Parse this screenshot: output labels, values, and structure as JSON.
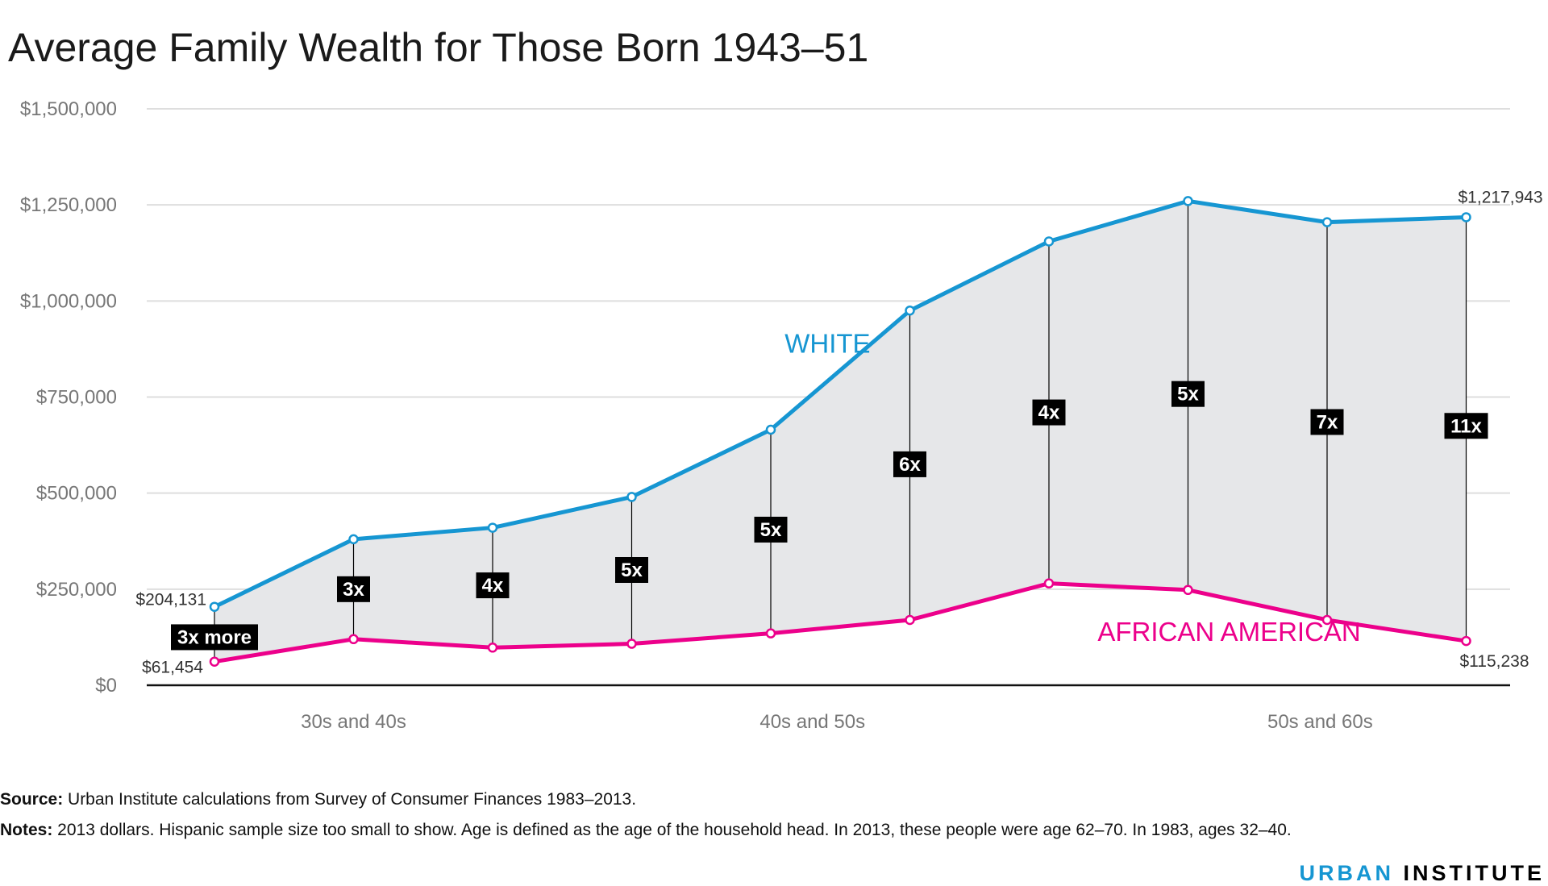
{
  "title": "Average Family Wealth for Those Born 1943–51",
  "colors": {
    "white_series": "#1696d2",
    "aa_series": "#ec008b",
    "gap_fill": "#e6e7e9",
    "grid": "#dedede",
    "axis": "#111111",
    "tick_text": "#777777",
    "ratio_badge_bg": "#000000",
    "ratio_badge_text": "#ffffff"
  },
  "chart_data": {
    "type": "line",
    "title": "Average Family Wealth for Those Born 1943–51",
    "ylim": [
      0,
      1500000
    ],
    "yticks": [
      0,
      250000,
      500000,
      750000,
      1000000,
      1250000,
      1500000
    ],
    "ytick_labels": [
      "$0",
      "$250,000",
      "$500,000",
      "$750,000",
      "$1,000,000",
      "$1,250,000",
      "$1,500,000"
    ],
    "xtick_labels": [
      {
        "label": "30s and 40s",
        "center": 1
      },
      {
        "label": "40s and 50s",
        "center": 4.3
      },
      {
        "label": "50s and 60s",
        "center": 7.95
      }
    ],
    "x": [
      0,
      1,
      2,
      3,
      4,
      5,
      6,
      7,
      8,
      9
    ],
    "grid": true,
    "area_between_series": true,
    "series": [
      {
        "name": "WHITE",
        "values": [
          204131,
          380000,
          410000,
          490000,
          665000,
          975000,
          1155000,
          1260000,
          1205000,
          1217943
        ]
      },
      {
        "name": "AFRICAN AMERICAN",
        "values": [
          61454,
          120000,
          98000,
          108000,
          135000,
          170000,
          265000,
          248000,
          170000,
          115238
        ]
      }
    ],
    "ratio_labels": [
      "3x more",
      "3x",
      "4x",
      "5x",
      "5x",
      "6x",
      "4x",
      "5x",
      "7x",
      "11x"
    ],
    "ratio_label_values": [
      125000,
      250000,
      260000,
      300000,
      405000,
      575000,
      710000,
      758000,
      685000,
      675000
    ],
    "endpoint_labels": [
      {
        "series": 0,
        "index": 0,
        "text": "$204,131"
      },
      {
        "series": 1,
        "index": 0,
        "text": "$61,454"
      },
      {
        "series": 0,
        "index": 9,
        "text": "$1,217,943"
      },
      {
        "series": 1,
        "index": 9,
        "text": "$115,238"
      }
    ],
    "series_labels": [
      {
        "series": 0,
        "text": "WHITE",
        "x": 4.1,
        "y": 865000
      },
      {
        "series": 1,
        "text": "AFRICAN AMERICAN",
        "x": 6.35,
        "y": 115000
      }
    ]
  },
  "footer": {
    "source_label": "Source:",
    "source_text": " Urban Institute calculations from Survey of Consumer Finances 1983–2013.",
    "notes_label": "Notes:",
    "notes_text": " 2013 dollars. Hispanic sample size too small to show. Age is defined as the age of the household head. In 2013, these people were age 62–70. In 1983, ages 32–40."
  },
  "brand": {
    "part1": "URBAN",
    "part2": "INSTITUTE"
  }
}
